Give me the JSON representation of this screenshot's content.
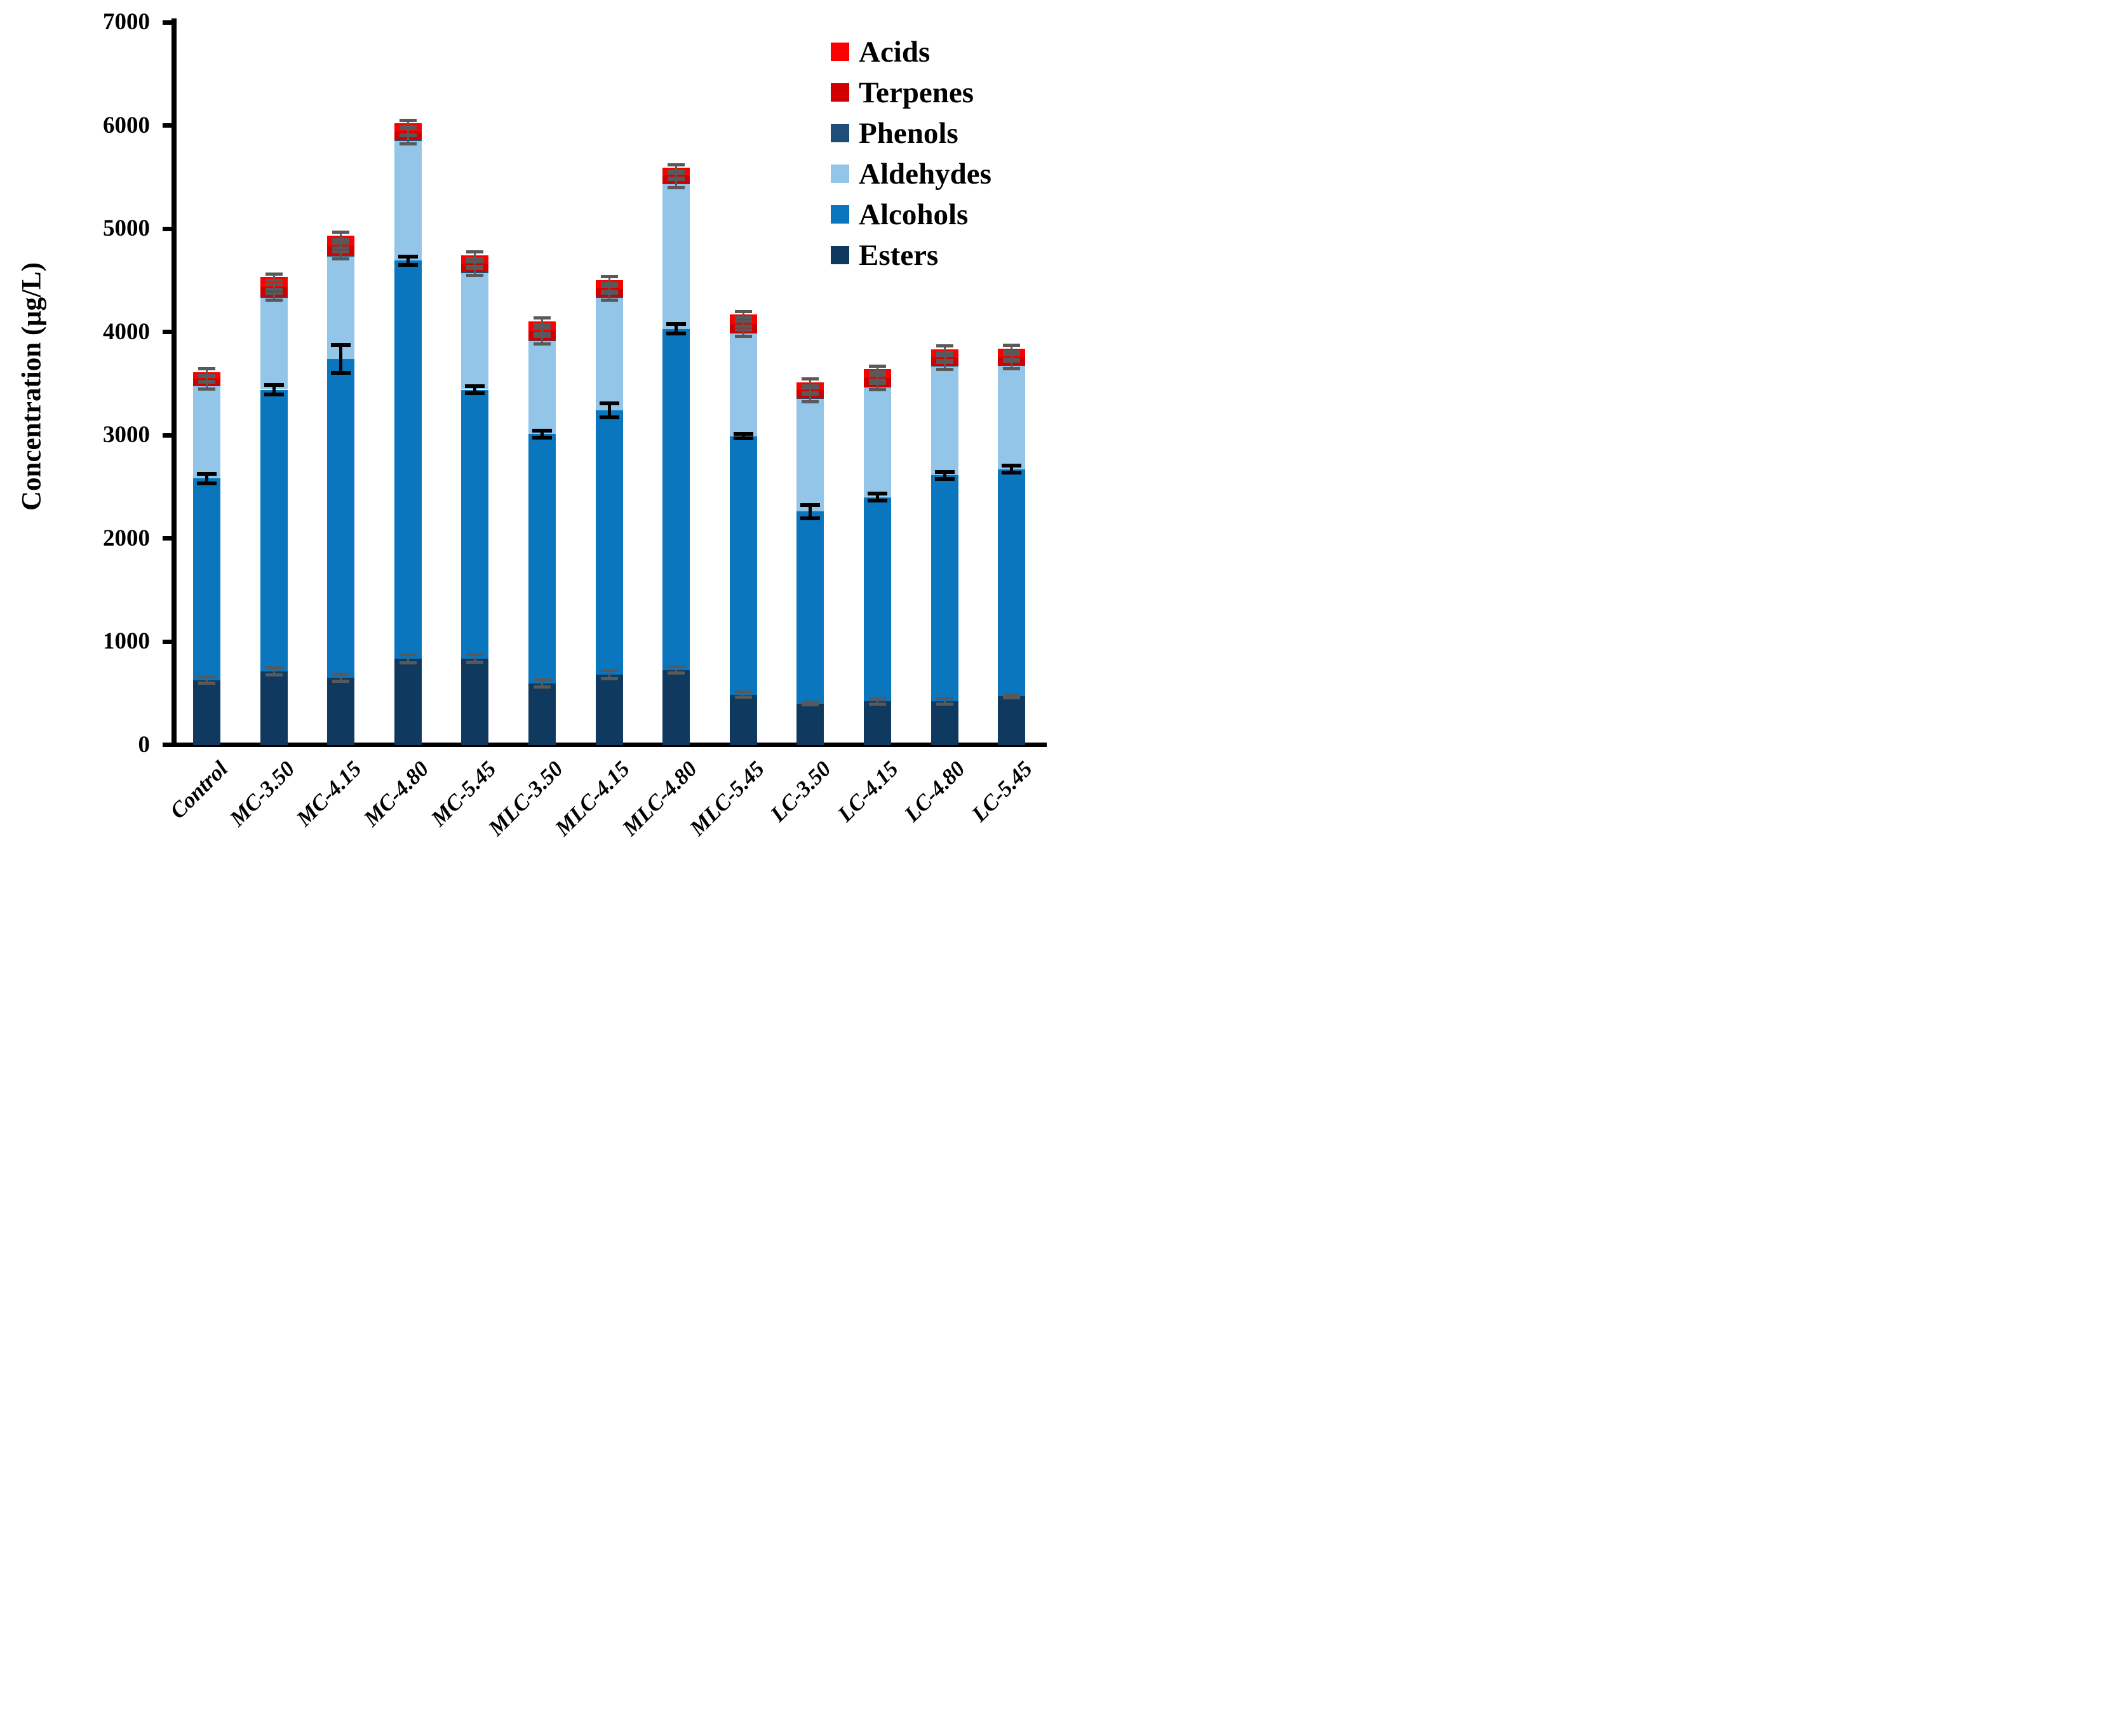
{
  "figure": {
    "background": "#ffffff",
    "axis_color": "#000000",
    "error_bar_gray": "#595959",
    "error_bar_black": "#000000"
  },
  "chart_data": {
    "type": "bar",
    "stacked": true,
    "title": "",
    "xlabel": "",
    "ylabel": "Concentration (μg/L)",
    "ylim": [
      0,
      7000
    ],
    "yticks": [
      0,
      1000,
      2000,
      3000,
      4000,
      5000,
      6000,
      7000
    ],
    "grid": false,
    "legend_position": "upper right",
    "legend_order": [
      "Acids",
      "Terpenes",
      "Phenols",
      "Aldehydes",
      "Alcohols",
      "Esters"
    ],
    "categories": [
      "Control",
      "MC-3.50",
      "MC-4.15",
      "MC-4.80",
      "MC-5.45",
      "MLC-3.50",
      "MLC-4.15",
      "MLC-4.80",
      "MLC-5.45",
      "LC-3.50",
      "LC-4.15",
      "LC-4.80",
      "LC-5.45"
    ],
    "series": [
      {
        "name": "Esters",
        "color": "#10395F",
        "values": [
          625,
          710,
          650,
          835,
          835,
          595,
          680,
          725,
          485,
          400,
          420,
          420,
          470
        ]
      },
      {
        "name": "Alcohols",
        "color": "#0A76BD",
        "values": [
          1955,
          2730,
          3090,
          3855,
          2605,
          2415,
          2560,
          3305,
          2505,
          1860,
          1980,
          2190,
          2200
        ]
      },
      {
        "name": "Aldehydes",
        "color": "#93C5E8",
        "values": [
          892,
          892,
          992,
          1162,
          1132,
          902,
          1092,
          1402,
          992,
          1092,
          1062,
          1052,
          1002
        ]
      },
      {
        "name": "Phenols",
        "color": "#1F4E79",
        "values": [
          8,
          8,
          8,
          8,
          8,
          8,
          8,
          8,
          8,
          8,
          8,
          8,
          8
        ]
      },
      {
        "name": "Terpenes",
        "color": "#D10000",
        "values": [
          65,
          95,
          95,
          80,
          80,
          90,
          80,
          75,
          90,
          75,
          85,
          80,
          80
        ]
      },
      {
        "name": "Acids",
        "color": "#FB0000",
        "values": [
          65,
          95,
          95,
          80,
          80,
          90,
          80,
          75,
          90,
          75,
          85,
          80,
          80
        ]
      }
    ],
    "totals": [
      3610,
      4530,
      4930,
      6020,
      4740,
      4100,
      4500,
      5590,
      4170,
      3510,
      3640,
      3830,
      3840
    ],
    "error_bars": [
      {
        "at": "Esters-top",
        "style": "gray",
        "values": [
          31,
          32,
          34,
          40,
          38,
          34,
          41,
          30,
          26,
          15,
          25,
          29,
          15
        ]
      },
      {
        "at": "Aldehydes-top",
        "style": "gray",
        "values": [
          35,
          35,
          35,
          40,
          35,
          35,
          35,
          40,
          30,
          35,
          30,
          35,
          35
        ]
      },
      {
        "at": "Terpenes-top",
        "style": "gray",
        "values": [
          25,
          25,
          25,
          30,
          25,
          25,
          25,
          25,
          25,
          25,
          25,
          25,
          25
        ]
      },
      {
        "at": "Total-top",
        "style": "gray",
        "values": [
          35,
          30,
          35,
          30,
          35,
          35,
          35,
          30,
          30,
          35,
          30,
          35,
          30
        ]
      },
      {
        "at": "Alcohols-top",
        "style": "black",
        "values": [
          45,
          45,
          135,
          40,
          35,
          35,
          70,
          45,
          20,
          65,
          35,
          35,
          35
        ]
      }
    ]
  }
}
